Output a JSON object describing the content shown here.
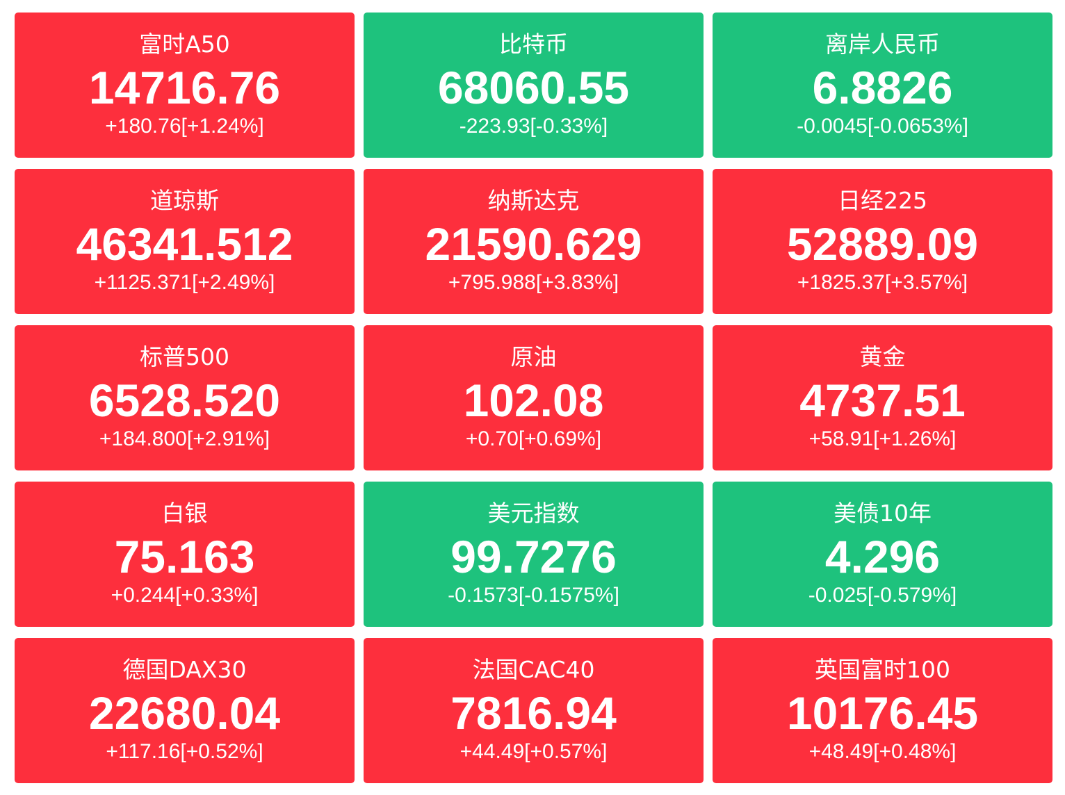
{
  "colors": {
    "up": "#fd2f3d",
    "down": "#1ec27d",
    "text": "#ffffff"
  },
  "quotes": [
    {
      "name": "富时A50",
      "price": "14716.76",
      "change": "+180.76[+1.24%]",
      "trend": "up"
    },
    {
      "name": "比特币",
      "price": "68060.55",
      "change": "-223.93[-0.33%]",
      "trend": "down"
    },
    {
      "name": "离岸人民币",
      "price": "6.8826",
      "change": "-0.0045[-0.0653%]",
      "trend": "down"
    },
    {
      "name": "道琼斯",
      "price": "46341.512",
      "change": "+1125.371[+2.49%]",
      "trend": "up"
    },
    {
      "name": "纳斯达克",
      "price": "21590.629",
      "change": "+795.988[+3.83%]",
      "trend": "up"
    },
    {
      "name": "日经225",
      "price": "52889.09",
      "change": "+1825.37[+3.57%]",
      "trend": "up"
    },
    {
      "name": "标普500",
      "price": "6528.520",
      "change": "+184.800[+2.91%]",
      "trend": "up"
    },
    {
      "name": "原油",
      "price": "102.08",
      "change": "+0.70[+0.69%]",
      "trend": "up"
    },
    {
      "name": "黄金",
      "price": "4737.51",
      "change": "+58.91[+1.26%]",
      "trend": "up"
    },
    {
      "name": "白银",
      "price": "75.163",
      "change": "+0.244[+0.33%]",
      "trend": "up"
    },
    {
      "name": "美元指数",
      "price": "99.7276",
      "change": "-0.1573[-0.1575%]",
      "trend": "down"
    },
    {
      "name": "美债10年",
      "price": "4.296",
      "change": "-0.025[-0.579%]",
      "trend": "down"
    },
    {
      "name": "德国DAX30",
      "price": "22680.04",
      "change": "+117.16[+0.52%]",
      "trend": "up"
    },
    {
      "name": "法国CAC40",
      "price": "7816.94",
      "change": "+44.49[+0.57%]",
      "trend": "up"
    },
    {
      "name": "英国富时100",
      "price": "10176.45",
      "change": "+48.49[+0.48%]",
      "trend": "up"
    }
  ]
}
